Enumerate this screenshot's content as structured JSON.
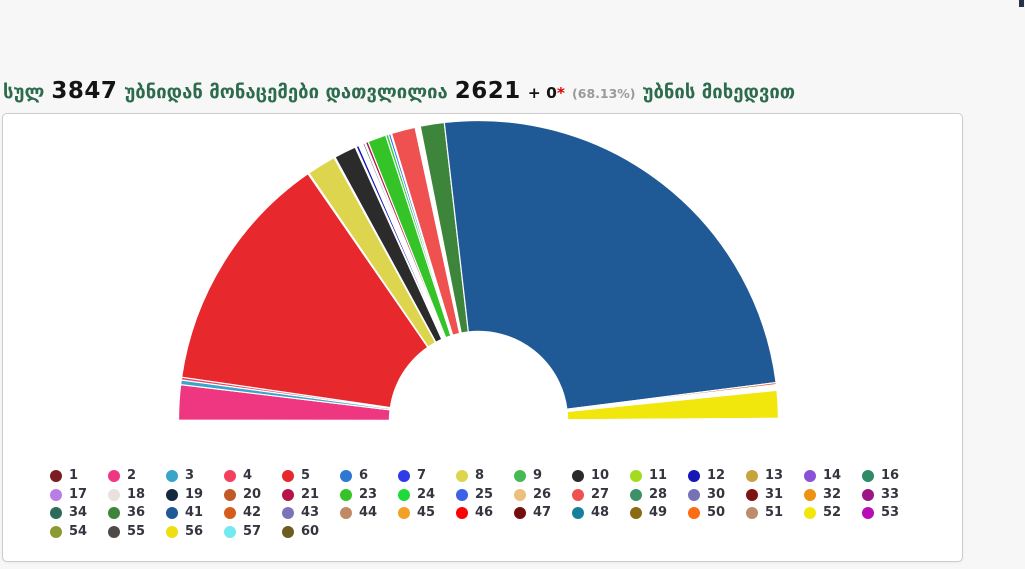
{
  "page": {
    "background_color": "#f7f7f7",
    "panel_background": "#ffffff",
    "panel_border_color": "#cccccc"
  },
  "header": {
    "word_total": "სულ",
    "total_stations": "3847",
    "phrase_counted": "უბნიდან მონაცემები დათვლილია",
    "counted_stations": "2621",
    "plus_value": "+ 0",
    "asterisk": "*",
    "percent_counted": "(68.13%)",
    "phrase_by_station": "უბნის მიხედვით",
    "green_text_color": "#2d6b4d",
    "asterisk_color": "#e00000",
    "percent_text_color": "#9a9a9a"
  },
  "chart_data": {
    "type": "pie",
    "variant": "half-donut",
    "title": "",
    "start_angle_deg": 180,
    "end_angle_deg": 0,
    "inner_radius_ratio": 0.297,
    "outer_radius_px": 300,
    "gap_color": "#ffffff",
    "legend_position": "bottom",
    "values_unit": "percent_share_estimated_from_pixels",
    "slices": [
      {
        "label": "1",
        "color": "#7b1b22",
        "value": 0.04
      },
      {
        "label": "2",
        "color": "#ef3781",
        "value": 3.8
      },
      {
        "label": "3",
        "color": "#38a5c9",
        "value": 0.5
      },
      {
        "label": "4",
        "color": "#f43f5e",
        "value": 0.3
      },
      {
        "label": "5",
        "color": "#e7282d",
        "value": 26.3
      },
      {
        "label": "6",
        "color": "#2e78d2",
        "value": 0.06
      },
      {
        "label": "7",
        "color": "#2f3be8",
        "value": 0.06
      },
      {
        "label": "8",
        "color": "#ddd54e",
        "value": 3.15
      },
      {
        "label": "9",
        "color": "#47b954",
        "value": 0.12
      },
      {
        "label": "10",
        "color": "#2b2b2b",
        "value": 2.4
      },
      {
        "label": "11",
        "color": "#a3db1f",
        "value": 0.12
      },
      {
        "label": "12",
        "color": "#1717b9",
        "value": 0.3
      },
      {
        "label": "13",
        "color": "#c7a23d",
        "value": 0.08
      },
      {
        "label": "14",
        "color": "#8a50d6",
        "value": 0.12
      },
      {
        "label": "16",
        "color": "#2e8b68",
        "value": 0.08
      },
      {
        "label": "17",
        "color": "#b97de8",
        "value": 0.08
      },
      {
        "label": "18",
        "color": "#e9e1dd",
        "value": 0.12
      },
      {
        "label": "19",
        "color": "#14293f",
        "value": 0.18
      },
      {
        "label": "20",
        "color": "#c05a27",
        "value": 0.12
      },
      {
        "label": "21",
        "color": "#b5134a",
        "value": 0.3
      },
      {
        "label": "23",
        "color": "#35c428",
        "value": 2.0
      },
      {
        "label": "24",
        "color": "#20d93b",
        "value": 0.3
      },
      {
        "label": "25",
        "color": "#3d62e8",
        "value": 0.25
      },
      {
        "label": "26",
        "color": "#ebc07c",
        "value": 0.1
      },
      {
        "label": "27",
        "color": "#ef5151",
        "value": 2.6
      },
      {
        "label": "28",
        "color": "#3d9168",
        "value": 0.12
      },
      {
        "label": "30",
        "color": "#7672b5",
        "value": 0.08
      },
      {
        "label": "31",
        "color": "#7a1511",
        "value": 0.08
      },
      {
        "label": "32",
        "color": "#eb9413",
        "value": 0.08
      },
      {
        "label": "33",
        "color": "#9c1685",
        "value": 0.08
      },
      {
        "label": "34",
        "color": "#2f6b5a",
        "value": 0.12
      },
      {
        "label": "36",
        "color": "#3e853c",
        "value": 2.6
      },
      {
        "label": "41",
        "color": "#1f5a97",
        "value": 49.9
      },
      {
        "label": "42",
        "color": "#d65c1d",
        "value": 0.22
      },
      {
        "label": "43",
        "color": "#7d73b8",
        "value": 0.04
      },
      {
        "label": "44",
        "color": "#c08a64",
        "value": 0.12
      },
      {
        "label": "45",
        "color": "#f2a125",
        "value": 0.07
      },
      {
        "label": "46",
        "color": "#fe0100",
        "value": 0.1
      },
      {
        "label": "47",
        "color": "#740e0e",
        "value": 0.07
      },
      {
        "label": "48",
        "color": "#177f9e",
        "value": 0.05
      },
      {
        "label": "49",
        "color": "#8a6a12",
        "value": 0.04
      },
      {
        "label": "50",
        "color": "#fb6d12",
        "value": 0.06
      },
      {
        "label": "51",
        "color": "#bd8c6d",
        "value": 0.06
      },
      {
        "label": "52",
        "color": "#f2e70d",
        "value": 3.0
      },
      {
        "label": "53",
        "color": "#b70db4",
        "value": 0.04
      },
      {
        "label": "54",
        "color": "#8c9a33",
        "value": 0.04
      },
      {
        "label": "55",
        "color": "#4d4a48",
        "value": 0.05
      },
      {
        "label": "56",
        "color": "#eede12",
        "value": 0.04
      },
      {
        "label": "57",
        "color": "#74e9ef",
        "value": 0.03
      },
      {
        "label": "60",
        "color": "#6e5c20",
        "value": 0.03
      }
    ]
  }
}
